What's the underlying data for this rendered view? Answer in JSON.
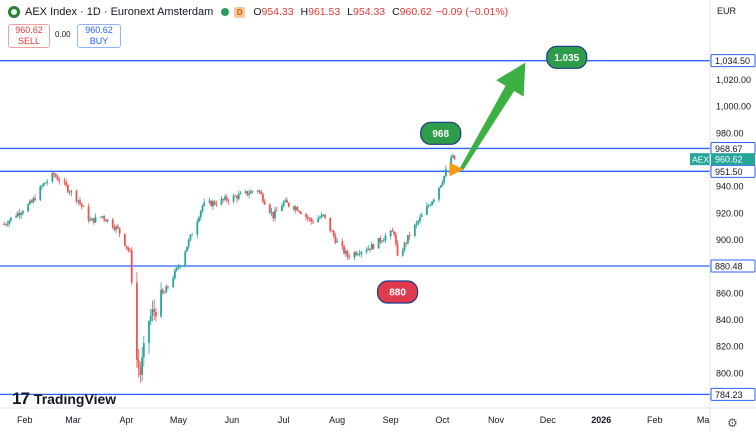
{
  "header": {
    "title": "AEX Index · 1D · Euronext Amsterdam",
    "d_badge": "D",
    "ohlc": {
      "o_label": "O",
      "o": "954.33",
      "h_label": "H",
      "h": "961.53",
      "l_label": "L",
      "l": "954.33",
      "c_label": "C",
      "c": "960.62"
    },
    "change": "−0.09 (−0.01%)",
    "sell": {
      "price": "960.62",
      "label": "SELL"
    },
    "buy": {
      "price": "960.62",
      "label": "BUY"
    },
    "spread": "0.00",
    "currency": "EUR"
  },
  "branding": "TradingView",
  "colors": {
    "up": "#26a69a",
    "down": "#ef5350",
    "level": "#2962ff",
    "arrow": "#3cb043",
    "callout_green": "#2f9c4a",
    "callout_red": "#e03a4e",
    "current": "#26a69a"
  },
  "chart_data": {
    "type": "candlestick",
    "symbol": "AEX Index",
    "interval": "1D",
    "x": {
      "tick_labels": [
        "Feb",
        "Mar",
        "Apr",
        "May",
        "Jun",
        "Jul",
        "Aug",
        "Sep",
        "Oct",
        "Nov",
        "Dec",
        "2026",
        "Feb",
        "Ma"
      ],
      "range": [
        "2025-01-20",
        "2026-03-05"
      ]
    },
    "y": {
      "tick_labels": [
        "1,020.00",
        "1,000.00",
        "980.00",
        "940.00",
        "920.00",
        "900.00",
        "860.00",
        "840.00",
        "820.00",
        "800.00"
      ],
      "ylim": [
        777,
        1053
      ]
    },
    "anchors": [
      [
        "2025-01-20",
        912
      ],
      [
        "2025-01-28",
        920
      ],
      [
        "2025-02-05",
        928
      ],
      [
        "2025-02-12",
        942
      ],
      [
        "2025-02-18",
        949
      ],
      [
        "2025-02-25",
        940
      ],
      [
        "2025-03-04",
        930
      ],
      [
        "2025-03-11",
        914
      ],
      [
        "2025-03-18",
        918
      ],
      [
        "2025-03-27",
        908
      ],
      [
        "2025-04-03",
        890
      ],
      [
        "2025-04-07",
        810
      ],
      [
        "2025-04-09",
        800
      ],
      [
        "2025-04-14",
        840
      ],
      [
        "2025-04-22",
        858
      ],
      [
        "2025-05-01",
        880
      ],
      [
        "2025-05-08",
        902
      ],
      [
        "2025-05-15",
        926
      ],
      [
        "2025-05-22",
        928
      ],
      [
        "2025-06-02",
        932
      ],
      [
        "2025-06-10",
        935
      ],
      [
        "2025-06-16",
        938
      ],
      [
        "2025-06-25",
        918
      ],
      [
        "2025-07-01",
        928
      ],
      [
        "2025-07-09",
        924
      ],
      [
        "2025-07-17",
        914
      ],
      [
        "2025-07-24",
        918
      ],
      [
        "2025-08-01",
        898
      ],
      [
        "2025-08-07",
        888
      ],
      [
        "2025-08-14",
        892
      ],
      [
        "2025-08-21",
        895
      ],
      [
        "2025-08-28",
        902
      ],
      [
        "2025-09-03",
        906
      ],
      [
        "2025-09-05",
        886
      ],
      [
        "2025-09-12",
        904
      ],
      [
        "2025-09-19",
        918
      ],
      [
        "2025-09-26",
        932
      ],
      [
        "2025-10-02",
        948
      ],
      [
        "2025-10-06",
        962
      ],
      [
        "2025-10-08",
        960.62
      ]
    ],
    "levels": [
      {
        "price": 1034.5,
        "label": "1,034.50"
      },
      {
        "price": 968.67,
        "label": "968.67"
      },
      {
        "price": 951.5,
        "label": "951.50"
      },
      {
        "price": 880.48,
        "label": "880.48"
      },
      {
        "price": 784.23,
        "label": "784.23"
      }
    ],
    "current": {
      "symbol_tag": "AEX",
      "price": 960.62,
      "label": "960.62"
    },
    "annotations": [
      {
        "text": "1.035",
        "date": "2025-12-12",
        "price": 1037,
        "color": "green"
      },
      {
        "text": "968",
        "date": "2025-09-30",
        "price": 980,
        "color": "green"
      },
      {
        "text": "880",
        "date": "2025-09-05",
        "price": 861,
        "color": "red"
      }
    ],
    "arrow": {
      "from": [
        "2025-10-12",
        953
      ],
      "to": [
        "2025-11-18",
        1033
      ]
    },
    "grid": false,
    "legend": "none"
  }
}
